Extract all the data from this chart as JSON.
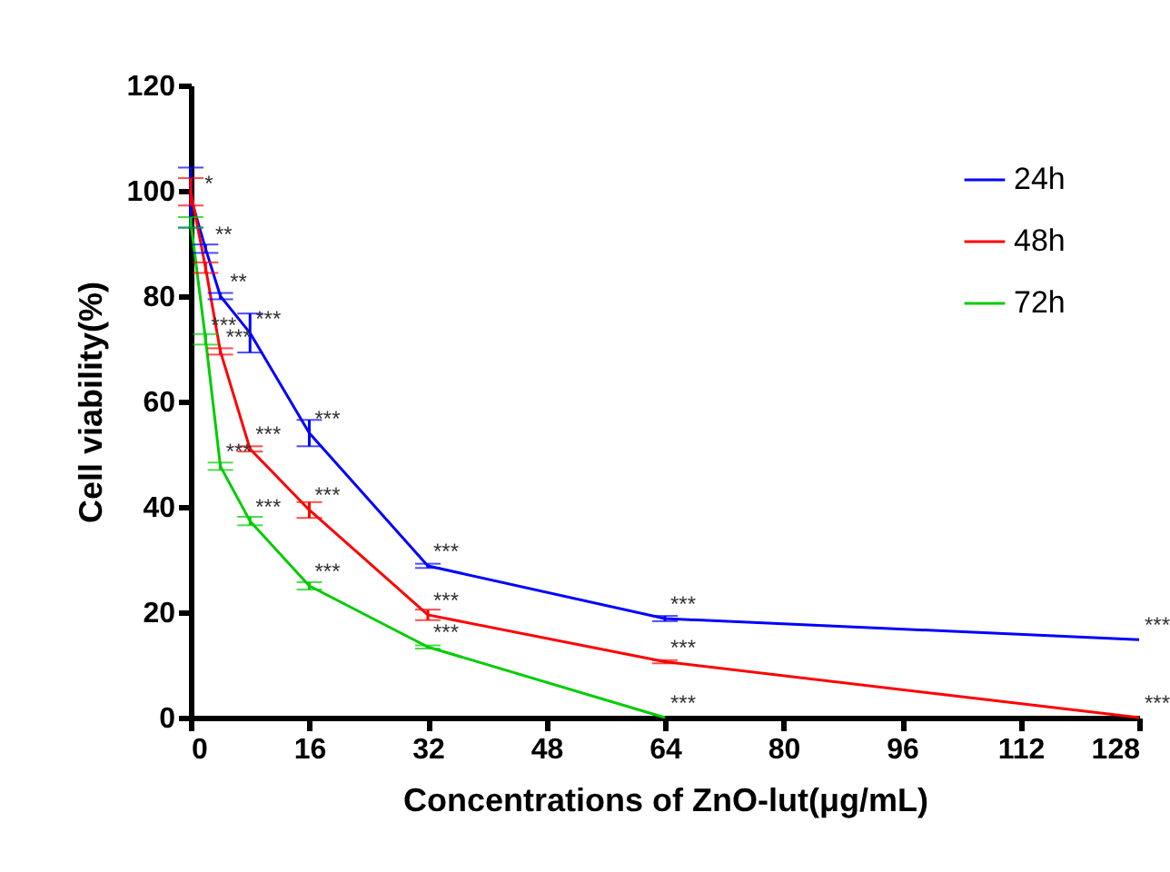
{
  "chart_data": {
    "type": "line",
    "xlabel": "Concentrations of ZnO-lut(μg/mL)",
    "ylabel": "Cell viability(%)",
    "x": [
      0,
      2,
      4,
      8,
      16,
      32,
      64,
      128
    ],
    "series": [
      {
        "name": "24h",
        "color": "#0000ff",
        "values": [
          98.7,
          89,
          80,
          73,
          54,
          28.8,
          18.8,
          14.8
        ],
        "errors": [
          5.7,
          0.8,
          0.6,
          3.7,
          2.5,
          0.4,
          0.5,
          null
        ]
      },
      {
        "name": "48h",
        "color": "#ff0000",
        "values": [
          99.8,
          85.4,
          69.5,
          51,
          39.4,
          19.5,
          10.6,
          0
        ],
        "errors": [
          2.6,
          1,
          0.6,
          0.5,
          1.5,
          1,
          0.3,
          null
        ]
      },
      {
        "name": "72h",
        "color": "#00cc00",
        "values": [
          94,
          71.8,
          47.7,
          37.3,
          25,
          13.4,
          0,
          null
        ],
        "errors": [
          1,
          1,
          0.7,
          0.8,
          0.7,
          0.3,
          null,
          null
        ]
      }
    ],
    "xlim": [
      0,
      128
    ],
    "xticks": [
      0,
      16,
      32,
      48,
      64,
      80,
      96,
      112,
      128
    ],
    "ylim": [
      0,
      120
    ],
    "yticks": [
      0,
      20,
      40,
      60,
      80,
      100,
      120
    ],
    "grid": false,
    "legend": "top right",
    "marker": "none",
    "line_style": "solid",
    "annotations": [
      {
        "text": "*",
        "x": 0,
        "y": 98.7
      },
      {
        "text": "**",
        "x": 2,
        "y": 89
      },
      {
        "text": "**",
        "x": 4,
        "y": 80
      },
      {
        "text": "***",
        "x": 8,
        "y": 73
      },
      {
        "text": "***",
        "x": 16,
        "y": 54
      },
      {
        "text": "***",
        "x": 32,
        "y": 28.8
      },
      {
        "text": "***",
        "x": 64,
        "y": 18.8
      },
      {
        "text": "***",
        "x": 128,
        "y": 14.8
      },
      {
        "text": "***",
        "x": 2,
        "y": 71.8
      },
      {
        "text": "***",
        "x": 4,
        "y": 69.5
      },
      {
        "text": "***",
        "x": 4,
        "y": 47.7
      },
      {
        "text": "***",
        "x": 8,
        "y": 51
      },
      {
        "text": "***",
        "x": 8,
        "y": 37.3
      },
      {
        "text": "***",
        "x": 16,
        "y": 39.4
      },
      {
        "text": "***",
        "x": 16,
        "y": 25
      },
      {
        "text": "***",
        "x": 32,
        "y": 19.5
      },
      {
        "text": "***",
        "x": 32,
        "y": 13.4
      },
      {
        "text": "***",
        "x": 64,
        "y": 10.6
      },
      {
        "text": "***",
        "x": 64,
        "y": 0
      },
      {
        "text": "***",
        "x": 128,
        "y": 0
      }
    ]
  }
}
